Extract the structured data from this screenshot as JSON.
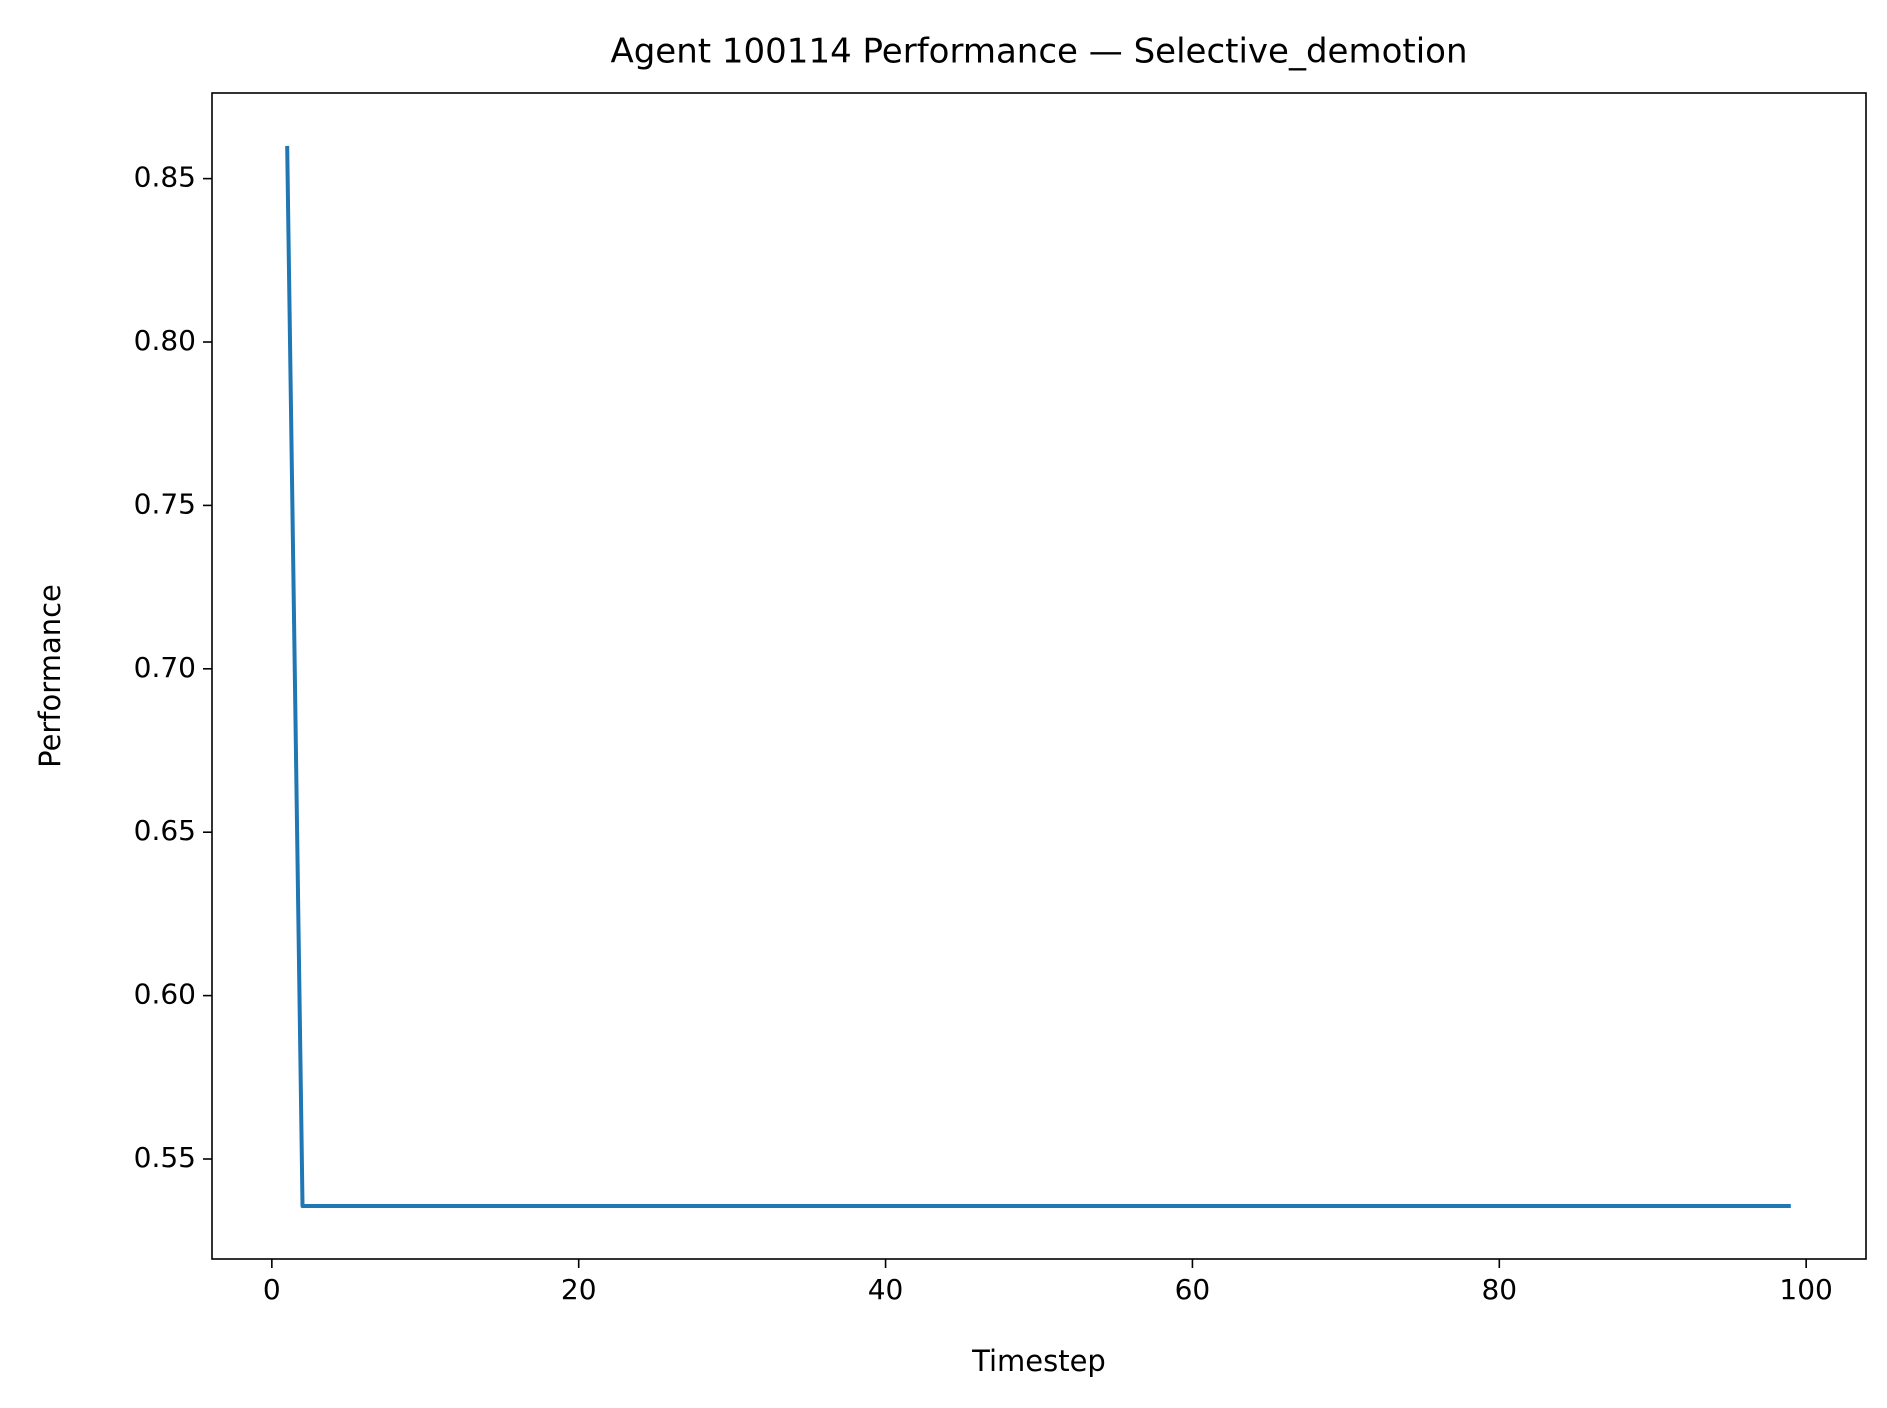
{
  "chart_data": {
    "type": "line",
    "title": "Agent 100114 Performance — Selective_demotion",
    "x_label": "Timestep",
    "y_label": "Performance",
    "xlim": [
      -3.9,
      103.9
    ],
    "ylim": [
      0.5194,
      0.8762
    ],
    "xticks": [
      0,
      20,
      40,
      60,
      80,
      100
    ],
    "yticks": [
      {
        "value": 0.55,
        "label": "0.55"
      },
      {
        "value": 0.6,
        "label": "0.60"
      },
      {
        "value": 0.65,
        "label": "0.65"
      },
      {
        "value": 0.7,
        "label": "0.70"
      },
      {
        "value": 0.75,
        "label": "0.75"
      },
      {
        "value": 0.8,
        "label": "0.80"
      },
      {
        "value": 0.85,
        "label": "0.85"
      }
    ],
    "grid": false,
    "x": [
      1,
      2,
      3,
      4,
      5,
      6,
      7,
      8,
      9,
      10,
      11,
      12,
      13,
      14,
      15,
      16,
      17,
      18,
      19,
      20,
      21,
      22,
      23,
      24,
      25,
      26,
      27,
      28,
      29,
      30,
      31,
      32,
      33,
      34,
      35,
      36,
      37,
      38,
      39,
      40,
      41,
      42,
      43,
      44,
      45,
      46,
      47,
      48,
      49,
      50,
      51,
      52,
      53,
      54,
      55,
      56,
      57,
      58,
      59,
      60,
      61,
      62,
      63,
      64,
      65,
      66,
      67,
      68,
      69,
      70,
      71,
      72,
      73,
      74,
      75,
      76,
      77,
      78,
      79,
      80,
      81,
      82,
      83,
      84,
      85,
      86,
      87,
      88,
      89,
      90,
      91,
      92,
      93,
      94,
      95,
      96,
      97,
      98,
      99
    ],
    "series": [
      {
        "color": "#1f77b4",
        "values": [
          0.86,
          0.5356,
          0.5356,
          0.5356,
          0.5356,
          0.5356,
          0.5356,
          0.5356,
          0.5356,
          0.5356,
          0.5356,
          0.5356,
          0.5356,
          0.5356,
          0.5356,
          0.5356,
          0.5356,
          0.5356,
          0.5356,
          0.5356,
          0.5356,
          0.5356,
          0.5356,
          0.5356,
          0.5356,
          0.5356,
          0.5356,
          0.5356,
          0.5356,
          0.5356,
          0.5356,
          0.5356,
          0.5356,
          0.5356,
          0.5356,
          0.5356,
          0.5356,
          0.5356,
          0.5356,
          0.5356,
          0.5356,
          0.5356,
          0.5356,
          0.5356,
          0.5356,
          0.5356,
          0.5356,
          0.5356,
          0.5356,
          0.5356,
          0.5356,
          0.5356,
          0.5356,
          0.5356,
          0.5356,
          0.5356,
          0.5356,
          0.5356,
          0.5356,
          0.5356,
          0.5356,
          0.5356,
          0.5356,
          0.5356,
          0.5356,
          0.5356,
          0.5356,
          0.5356,
          0.5356,
          0.5356,
          0.5356,
          0.5356,
          0.5356,
          0.5356,
          0.5356,
          0.5356,
          0.5356,
          0.5356,
          0.5356,
          0.5356,
          0.5356,
          0.5356,
          0.5356,
          0.5356,
          0.5356,
          0.5356,
          0.5356,
          0.5356,
          0.5356,
          0.5356,
          0.5356,
          0.5356,
          0.5356,
          0.5356,
          0.5356,
          0.5356,
          0.5356,
          0.5356,
          0.5356
        ]
      }
    ]
  }
}
